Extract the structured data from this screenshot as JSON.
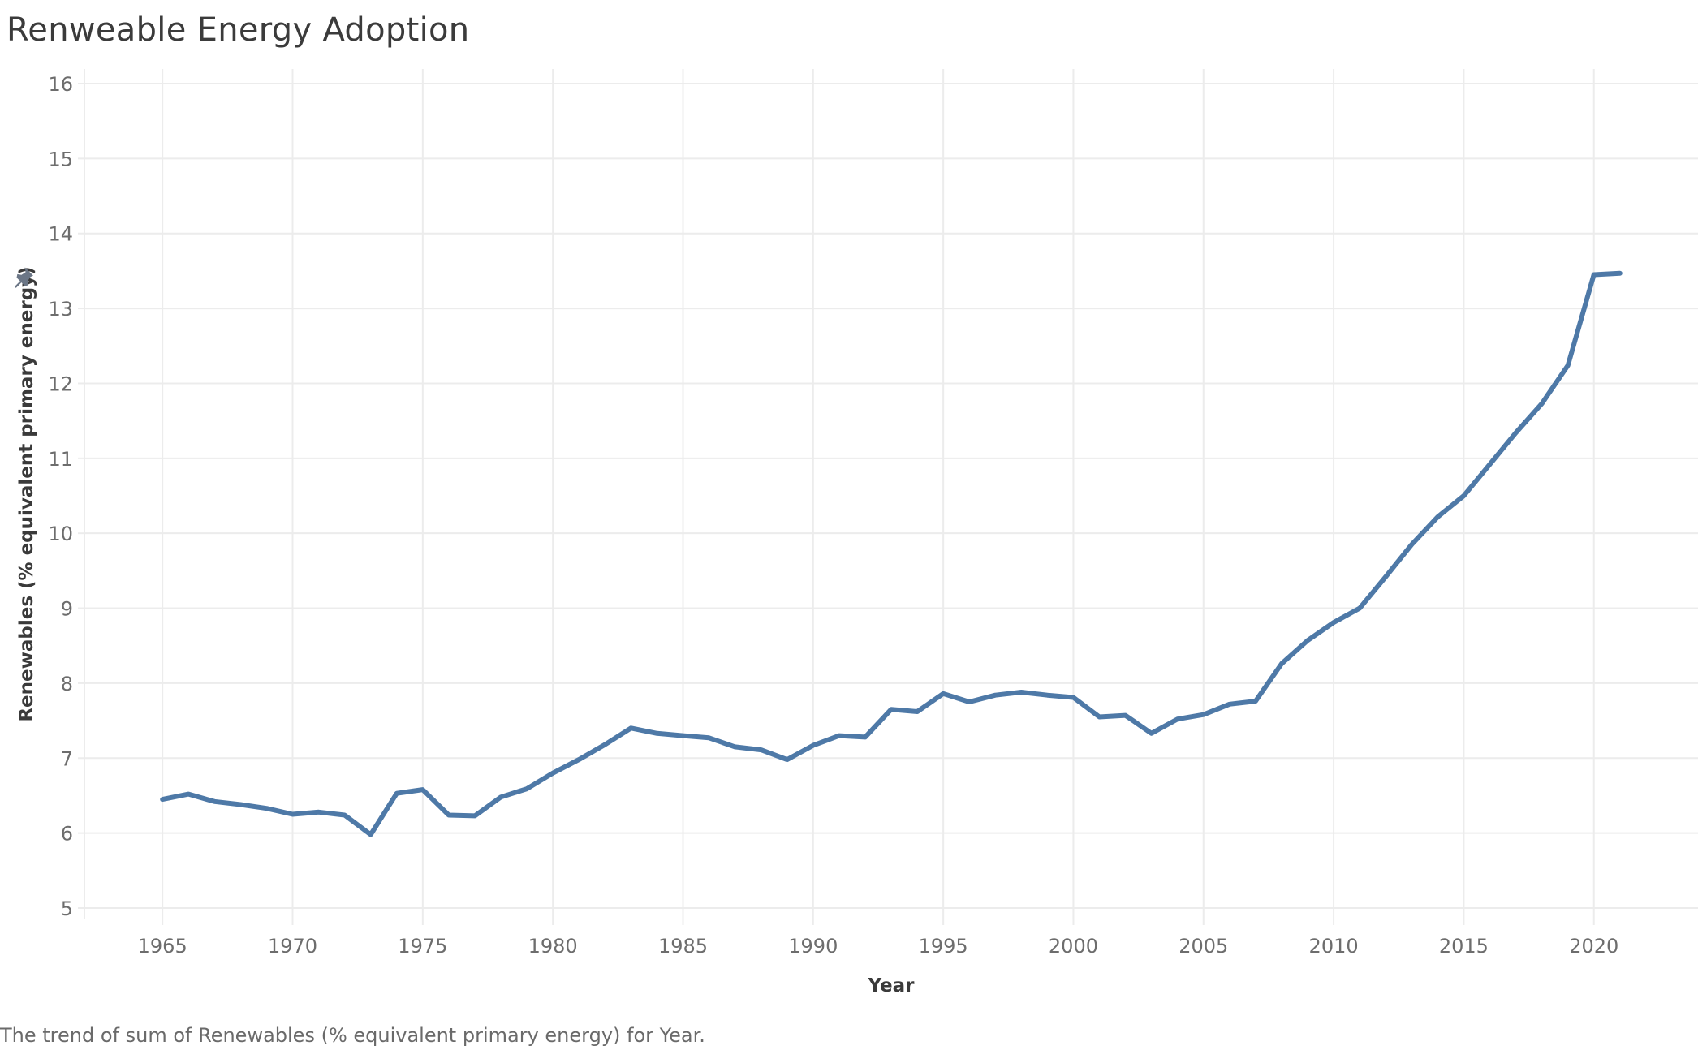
{
  "title": "Renweable Energy Adoption",
  "caption": "The trend of sum of Renewables (% equivalent primary energy) for Year.",
  "colors": {
    "line": "#4e79a7",
    "grid": "#ececec",
    "pin": "#6b7686"
  },
  "icons": {
    "pin": "pushpin-icon"
  },
  "chart_data": {
    "type": "line",
    "title": "Renweable Energy Adoption",
    "xlabel": "Year",
    "ylabel": "Renewables (% equivalent primary energy)",
    "xlim": [
      1962,
      2024
    ],
    "ylim": [
      5,
      16
    ],
    "xticks": [
      1965,
      1970,
      1975,
      1980,
      1985,
      1990,
      1995,
      2000,
      2005,
      2010,
      2015,
      2020
    ],
    "yticks": [
      5,
      6,
      7,
      8,
      9,
      10,
      11,
      12,
      13,
      14,
      15,
      16
    ],
    "grid": true,
    "legend": "none",
    "series": [
      {
        "x": [
          1965,
          1966,
          1967,
          1968,
          1969,
          1970,
          1971,
          1972,
          1973,
          1974,
          1975,
          1976,
          1977,
          1978,
          1979,
          1980,
          1981,
          1982,
          1983,
          1984,
          1985,
          1986,
          1987,
          1988,
          1989,
          1990,
          1991,
          1992,
          1993,
          1994,
          1995,
          1996,
          1997,
          1998,
          1999,
          2000,
          2001,
          2002,
          2003,
          2004,
          2005,
          2006,
          2007,
          2008,
          2009,
          2010,
          2011,
          2012,
          2013,
          2014,
          2015,
          2016,
          2017,
          2018,
          2019,
          2020,
          2021
        ],
        "values": [
          6.45,
          6.52,
          6.42,
          6.38,
          6.33,
          6.25,
          6.28,
          6.24,
          5.98,
          6.53,
          6.58,
          6.24,
          6.23,
          6.48,
          6.59,
          6.8,
          6.98,
          7.18,
          7.4,
          7.33,
          7.3,
          7.27,
          7.15,
          7.11,
          6.98,
          7.17,
          7.3,
          7.28,
          7.65,
          7.62,
          7.86,
          7.75,
          7.84,
          7.88,
          7.84,
          7.81,
          7.55,
          7.57,
          7.33,
          7.52,
          7.58,
          7.72,
          7.76,
          8.26,
          8.57,
          8.81,
          9.0,
          9.42,
          9.85,
          10.22,
          10.5,
          10.92,
          11.34,
          11.73,
          12.24,
          13.45,
          13.47
        ]
      }
    ]
  }
}
